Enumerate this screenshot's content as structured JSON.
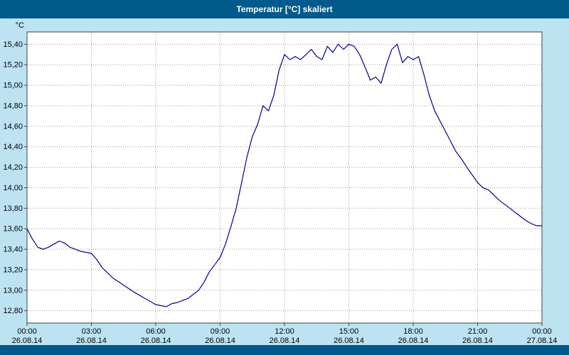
{
  "window": {
    "title": "Temperatur [°C] skaliert"
  },
  "colors": {
    "titlebar": "#005A8B",
    "background": "#BDE3F3",
    "plot_bg": "#FFFFFF",
    "grid": "#9B9B9B",
    "border": "#404040",
    "text": "#000000",
    "title_text": "#FFFFFF",
    "line": "#00008B"
  },
  "chart_data": {
    "type": "line",
    "title": "Temperatur [°C] skaliert",
    "xlabel": "",
    "ylabel": "°C",
    "grid": true,
    "legend": "none",
    "ylim": [
      12.68,
      15.52
    ],
    "xlim_hours": [
      0,
      24
    ],
    "y_ticks": [
      "15,40",
      "15,20",
      "15,00",
      "14,80",
      "14,60",
      "14,40",
      "14,20",
      "14,00",
      "13,80",
      "13,60",
      "13,40",
      "13,20",
      "13,00",
      "12,80"
    ],
    "x_ticks": [
      {
        "hour": 0,
        "time": "00:00",
        "date": "26.08.14"
      },
      {
        "hour": 3,
        "time": "03:00",
        "date": "26.08.14"
      },
      {
        "hour": 6,
        "time": "06:00",
        "date": "26.08.14"
      },
      {
        "hour": 9,
        "time": "09:00",
        "date": "26.08.14"
      },
      {
        "hour": 12,
        "time": "12:00",
        "date": "26.08.14"
      },
      {
        "hour": 15,
        "time": "15:00",
        "date": "26.08.14"
      },
      {
        "hour": 18,
        "time": "18:00",
        "date": "26.08.14"
      },
      {
        "hour": 21,
        "time": "21:00",
        "date": "26.08.14"
      },
      {
        "hour": 24,
        "time": "00:00",
        "date": "27.08.14"
      }
    ],
    "series": [
      {
        "name": "Temperatur",
        "color": "#00008B",
        "x": [
          0,
          0.25,
          0.5,
          0.75,
          1,
          1.25,
          1.5,
          1.75,
          2,
          2.5,
          3,
          3.25,
          3.5,
          4,
          4.5,
          5,
          5.5,
          6,
          6.25,
          6.5,
          6.75,
          7,
          7.25,
          7.5,
          8,
          8.25,
          8.5,
          8.75,
          9,
          9.25,
          9.5,
          9.75,
          10,
          10.25,
          10.5,
          10.75,
          11,
          11.25,
          11.5,
          11.75,
          12,
          12.25,
          12.5,
          12.75,
          13,
          13.25,
          13.5,
          13.75,
          14,
          14.25,
          14.5,
          14.75,
          15,
          15.25,
          15.5,
          15.75,
          16,
          16.25,
          16.5,
          16.75,
          17,
          17.25,
          17.5,
          17.75,
          18,
          18.25,
          18.5,
          18.75,
          19,
          19.25,
          19.5,
          19.75,
          20,
          20.25,
          20.5,
          21,
          21.25,
          21.5,
          22,
          22.5,
          23,
          23.25,
          23.5,
          23.75,
          24
        ],
        "y": [
          13.6,
          13.5,
          13.42,
          13.4,
          13.42,
          13.45,
          13.48,
          13.46,
          13.42,
          13.38,
          13.36,
          13.3,
          13.22,
          13.12,
          13.05,
          12.98,
          12.92,
          12.86,
          12.85,
          12.84,
          12.87,
          12.88,
          12.9,
          12.92,
          13.0,
          13.08,
          13.18,
          13.25,
          13.32,
          13.45,
          13.62,
          13.8,
          14.05,
          14.3,
          14.5,
          14.62,
          14.8,
          14.75,
          14.9,
          15.15,
          15.3,
          15.25,
          15.28,
          15.25,
          15.3,
          15.35,
          15.28,
          15.25,
          15.38,
          15.32,
          15.4,
          15.35,
          15.4,
          15.38,
          15.3,
          15.18,
          15.05,
          15.08,
          15.02,
          15.2,
          15.35,
          15.4,
          15.22,
          15.28,
          15.25,
          15.28,
          15.1,
          14.9,
          14.75,
          14.65,
          14.55,
          14.45,
          14.35,
          14.28,
          14.2,
          14.05,
          14.0,
          13.98,
          13.88,
          13.8,
          13.72,
          13.68,
          13.65,
          13.63,
          13.63
        ]
      }
    ]
  }
}
